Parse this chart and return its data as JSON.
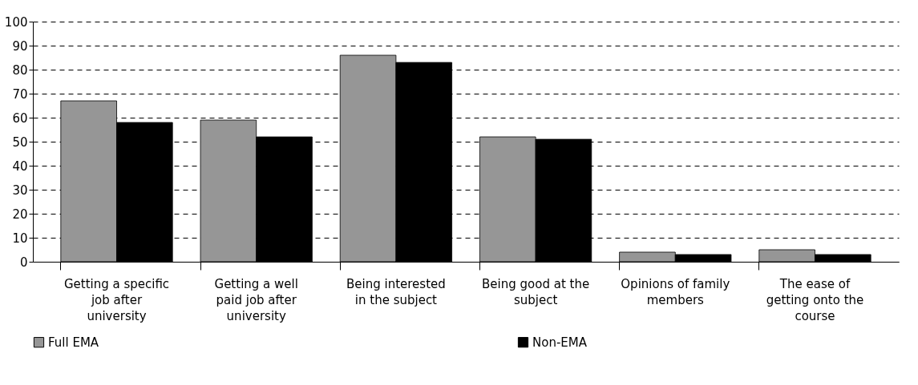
{
  "chart_data": {
    "type": "bar",
    "categories": [
      "Getting a specific job after university",
      "Getting a well paid job after university",
      "Being interested in the subject",
      "Being good at the subject",
      "Opinions of family members",
      "The ease of getting onto the course"
    ],
    "series": [
      {
        "name": "Full EMA",
        "color": "#969696",
        "values": [
          67,
          59,
          86,
          52,
          4,
          5
        ]
      },
      {
        "name": "Non-EMA",
        "color": "#000000",
        "values": [
          58,
          52,
          83,
          51,
          3,
          3
        ]
      }
    ],
    "ylim": [
      0,
      100
    ],
    "yticks": [
      0,
      10,
      20,
      30,
      40,
      50,
      60,
      70,
      80,
      90,
      100
    ],
    "grid": "y",
    "legend": "bottom"
  }
}
